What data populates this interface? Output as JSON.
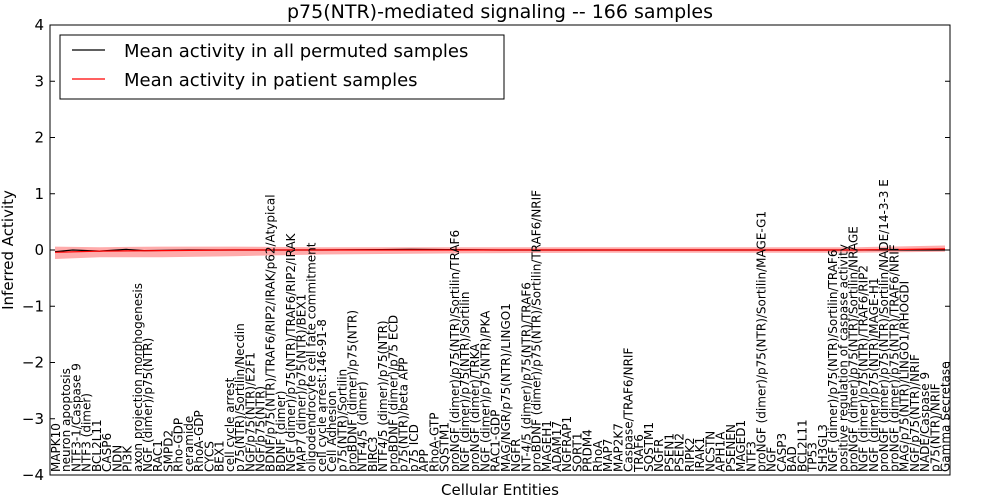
{
  "chart_data": {
    "type": "line",
    "title": "p75(NTR)-mediated signaling -- 166 samples",
    "xlabel": "Cellular Entities",
    "ylabel": "Inferred Activity",
    "ylim": [
      -4,
      4
    ],
    "yticks": [
      -4,
      -3,
      -2,
      -1,
      0,
      1,
      2,
      3,
      4
    ],
    "ytick_labels": [
      "−4",
      "−3",
      "−2",
      "−1",
      "0",
      "1",
      "2",
      "3",
      "4"
    ],
    "legend": {
      "placement": "top-left",
      "entries": [
        {
          "label": "Mean activity in all permuted samples",
          "color": "#000000"
        },
        {
          "label": "Mean activity in patient samples",
          "color": "#ff0000"
        }
      ]
    },
    "categories": [
      "MAPK10",
      "neuron apoptosis",
      "NTF3-1/Caspase 9",
      "NTF3 (dimer)",
      "BCL2L11",
      "CASP6",
      "NDN",
      "PI3K",
      "axon projection morphogenesis",
      "NGF (dimer)/p75(NTR)",
      "RAC1",
      "SMPD2",
      "Rho-GDP",
      "ceramide",
      "RhoA-GDP",
      "CYCS",
      "BEX1",
      "cell cycle arrest",
      "p75(NTR)/Sortilin/Necdin",
      "NGF/p75(NTR)/E2F1",
      "NGF/p75(NTR)",
      "BDNF/p75(NTR)/TRAF6/RIP2/IRAK/p62/Atypical",
      "BDNF (dimer)",
      "NGF (dimer)/p75(NTR)/TRAF6/RIP2/IRAK",
      "MAP7 (dimer)/p75(NTR)/BEX1",
      "oligodendrocyte cell fate commitment",
      "cell cycle arrest:146-91-8",
      "Cell Adhesion",
      "p75(NTR)/Sortilin",
      "proBDNF (dimer)/p75(NTR)",
      "NTF4/5 (dimer)",
      "BIRC3",
      "NTF4/5 (dimer)/p75(NTR)",
      "proBDNF (dimer)/p75 ECD",
      "p75(NTR)/beta APP",
      "p75 ICD",
      "APP",
      "RhoA-GTP",
      "SQSTM1",
      "proNGF (dimer)/p75(NTR)/Sortilin/TRAF6",
      "NGF (dimer)/p75(NTR)/Sortilin",
      "proNGF (dimer)/TRKA",
      "NGF (dimer)/p75(NTR)/PKA",
      "RAC1-GDP",
      "MAG/NGR/p75(NTR)/LINGO1",
      "NGFR",
      "NT-4/5 (dimer)/p75(NTR)/TRAF6",
      "proBDNF (dimer)/p75(NTR)/Sortilin/TRAF6/NRIF",
      "MAGEH1",
      "ADAM17",
      "NGFRAP1",
      "SORT1",
      "PRDM4",
      "RhoA",
      "MAP7",
      "MAP2K7",
      "Caspase/TRAF6/NRIF",
      "TRAF6",
      "SQSTM1",
      "NGFR",
      "PSEN1",
      "PSEN2",
      "RIPK2",
      "IRAK1",
      "NCSTN",
      "APH1A",
      "PSENEN",
      "MAGED1",
      "NTF3",
      "proNGF (dimer)/p75(NTR)/Sortilin/MAGE-G1",
      "NGF",
      "CASP3",
      "BAD",
      "BCL2L11",
      "TP53",
      "SH3GL3",
      "NGF (dimer)/p75(NTR)/Sortilin/TRAF6",
      "positive regulation of caspase activity",
      "proNGF (dimer)/p75(NTR)/Sortilin/NRAGE",
      "NGF (dimer)/p75(NTR)/TRAF6/RIP2",
      "NGF (dimer)/p75(NTR)/MAGE-H1",
      "proNGF (dimer)/p75(NTR)/Sortilin/NADE/14-3-3 E",
      "proNGF (dimer)/p75(NTR)/TRAF6/NRIF",
      "MAG/p75(NTR)/LINGO1/RHOGDI",
      "NGF/p75(NTR)/NRIF",
      "NADE/Caspase 9",
      "p75(NTR)/NRIF",
      "Gamma Secretase"
    ],
    "series": [
      {
        "name": "Mean activity in patient samples",
        "x": [
          0,
          0.05,
          0.12,
          0.2,
          0.3,
          0.45,
          0.6,
          0.75,
          0.9,
          1.0
        ],
        "values": [
          -0.04,
          -0.02,
          -0.01,
          0.0,
          0.0,
          0.0,
          0.0,
          0.0,
          0.0,
          0.02
        ],
        "band_upper": [
          0.06,
          0.05,
          0.06,
          0.06,
          0.05,
          0.05,
          0.05,
          0.05,
          0.05,
          0.08
        ],
        "band_lower": [
          -0.16,
          -0.13,
          -0.13,
          -0.11,
          -0.08,
          -0.06,
          -0.05,
          -0.05,
          -0.05,
          -0.03
        ]
      },
      {
        "name": "Mean activity in all permuted samples",
        "x": [
          0,
          0.02,
          0.05,
          0.08,
          0.1,
          0.15,
          0.2,
          0.3,
          0.4,
          0.5,
          0.6,
          0.7,
          0.8,
          0.9,
          1.0
        ],
        "values": [
          -0.03,
          0.0,
          -0.02,
          0.01,
          -0.01,
          0.0,
          0.0,
          0.0,
          0.01,
          0.0,
          0.0,
          0.0,
          0.0,
          0.0,
          0.0
        ]
      }
    ]
  }
}
